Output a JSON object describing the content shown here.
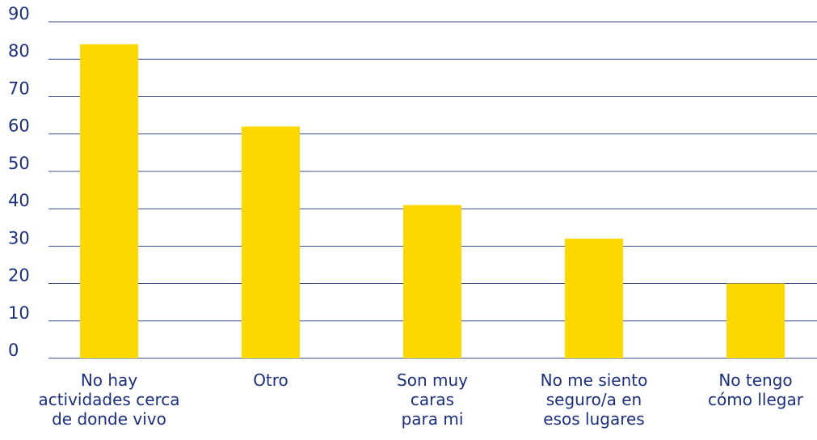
{
  "chart_data": {
    "type": "bar",
    "categories": [
      "No hay\nactividades cerca\nde donde vivo",
      "Otro",
      "Son muy\ncaras\npara mi",
      "No me siento\nseguro/a en\nesos lugares",
      "No tengo\ncómo llegar"
    ],
    "values": [
      84,
      62,
      41,
      32,
      20
    ],
    "color": "#fdd800",
    "ylim": [
      0,
      90
    ],
    "yticks": [
      0,
      10,
      20,
      30,
      40,
      50,
      60,
      70,
      80,
      90
    ],
    "grid": true
  }
}
